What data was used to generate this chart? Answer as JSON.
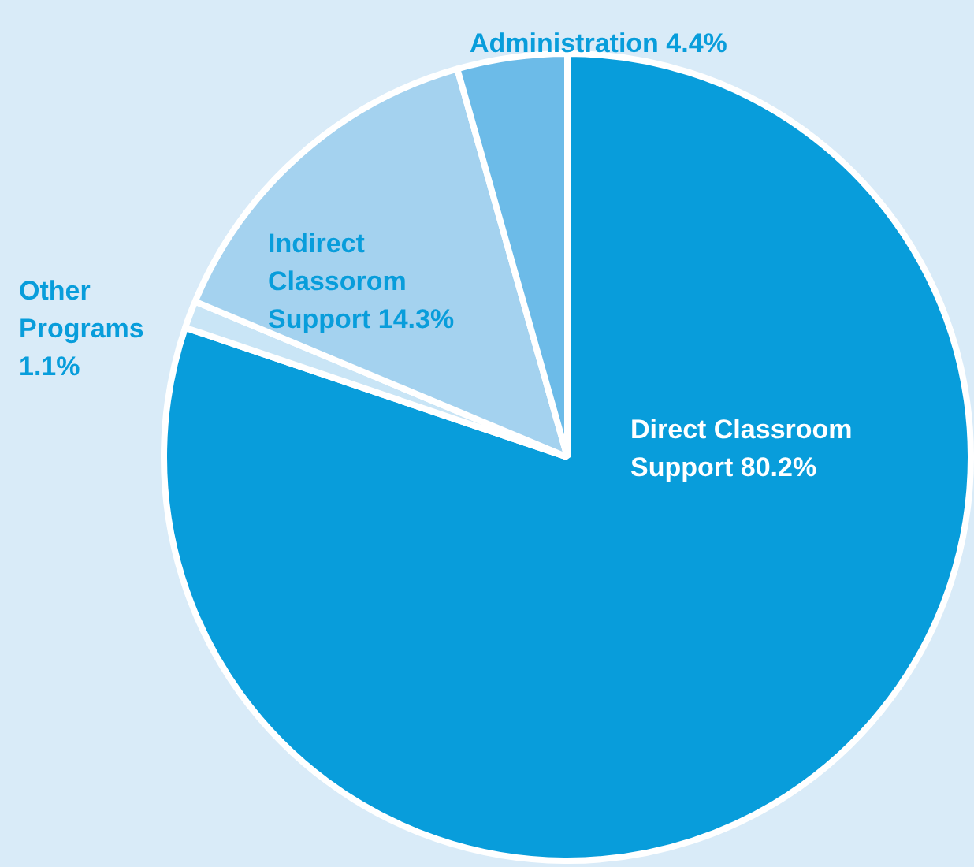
{
  "chart_data": {
    "type": "pie",
    "categories": [
      "Direct Classroom Support",
      "Other Programs",
      "Indirect Classorom Support",
      "Administration"
    ],
    "values": [
      80.2,
      1.1,
      14.3,
      4.4
    ],
    "colors": [
      "#089ddb",
      "#c9e5f6",
      "#a4d2ef",
      "#6cbbe8"
    ],
    "value_labels": [
      "80.2%",
      "1.1%",
      "14.3%",
      "4.4%"
    ],
    "legend": false
  }
}
